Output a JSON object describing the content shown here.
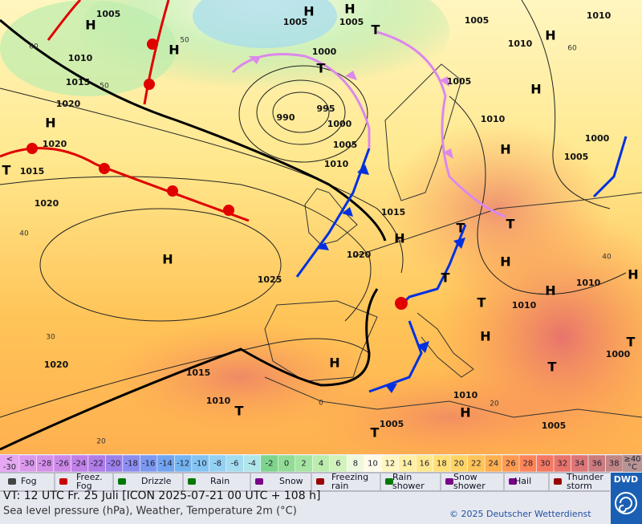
{
  "map": {
    "pressure_labels": [
      "1005",
      "1005",
      "1005",
      "1005",
      "1010",
      "1010",
      "1000",
      "1010",
      "1015",
      "1005",
      "1020",
      "995",
      "990",
      "1000",
      "1010",
      "1005",
      "1000",
      "1005",
      "1020",
      "1015",
      "1010",
      "1020",
      "1015",
      "1020",
      "1025",
      "1010",
      "1010",
      "1020",
      "1015",
      "1010",
      "1010",
      "1005",
      "1005",
      "1000"
    ],
    "temperature_labels": [
      "60",
      "50",
      "40",
      "30",
      "20",
      "40",
      "60",
      "50",
      "0",
      "20"
    ],
    "highs": [
      "H",
      "H",
      "H",
      "H",
      "H",
      "H",
      "H",
      "H",
      "H",
      "H",
      "H",
      "H",
      "H",
      "H",
      "H",
      "H"
    ],
    "lows": [
      "T",
      "T",
      "T",
      "T",
      "T",
      "T",
      "T",
      "T",
      "T",
      "T",
      "T"
    ]
  },
  "legend": {
    "scale_first": [
      "<",
      "-30"
    ],
    "scale": [
      -30,
      -28,
      -26,
      -24,
      -22,
      -20,
      -18,
      -16,
      -14,
      -12,
      -10,
      -8,
      -6,
      -4,
      -2,
      0,
      2,
      4,
      6,
      8,
      10,
      12,
      14,
      16,
      18,
      20,
      22,
      24,
      26,
      28,
      30,
      32,
      34,
      36,
      38
    ],
    "scale_last": [
      "≥40",
      "°C"
    ],
    "colors": [
      "#e6a8f2",
      "#dc98ec",
      "#d590ea",
      "#cc88e8",
      "#c080e8",
      "#b07ce8",
      "#9c80ec",
      "#8c8cf0",
      "#7c98f0",
      "#70a4f0",
      "#74b4f0",
      "#84c4f2",
      "#94d0f2",
      "#a4dcf0",
      "#b0e6ea",
      "#7ed48c",
      "#92dc96",
      "#a6e4a2",
      "#bcecae",
      "#d2f2bc",
      "#eef8dc",
      "#fffbe8",
      "#fff6c0",
      "#fff0a4",
      "#ffe88e",
      "#ffdf76",
      "#ffd466",
      "#ffc458",
      "#ffb050",
      "#ff9a50",
      "#ff8458",
      "#f57862",
      "#e8746c",
      "#dc7676",
      "#cc7c7e",
      "#c08686",
      "#b89494"
    ],
    "weather": [
      [
        "Fog"
      ],
      [
        "Freez.",
        "Fog"
      ],
      [
        "Drizzle"
      ],
      [
        "Rain"
      ],
      [
        "Snow"
      ],
      [
        "Freezing",
        "rain"
      ],
      [
        "Rain",
        "shower"
      ],
      [
        "Snow",
        "shower"
      ],
      [
        "Hail"
      ],
      [
        "Thunder",
        "storm"
      ]
    ]
  },
  "footer": {
    "valid_time": "VT: 12 UTC Fr.  25 Juli [ICON 2025-07-21  00 UTC + 108 h]",
    "description": "Sea level pressure (hPa), Weather, Temperature 2m (°C)",
    "copyright": "© 2025 Deutscher Wetterdienst",
    "logo": "DWD"
  }
}
